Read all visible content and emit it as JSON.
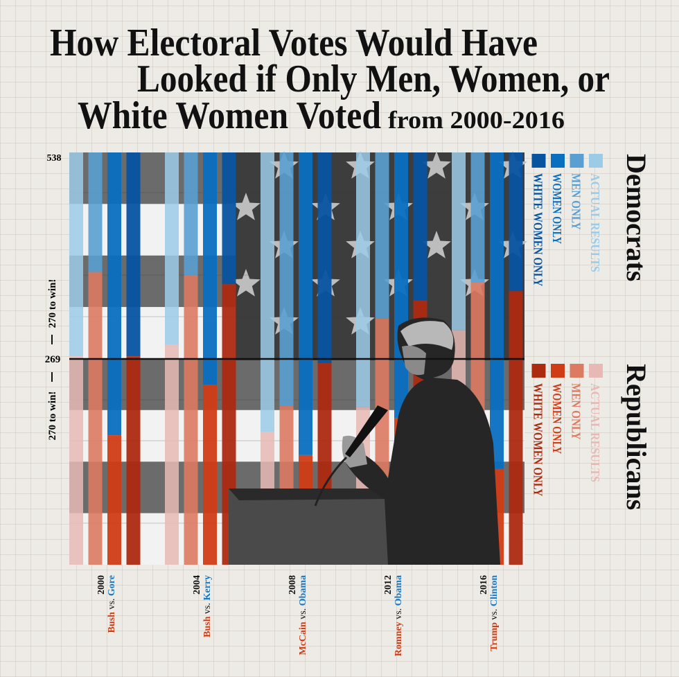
{
  "title": {
    "line1": "How Electoral Votes Would Have",
    "line2": "Looked if Only Men, Women, or",
    "line3": "White Women Voted",
    "line3_suffix": "from 2000-2016"
  },
  "chart_data": {
    "type": "bar",
    "stacked": true,
    "title": "How Electoral Votes Would Have Looked if Only Men, Women, or White Women Voted from 2000-2016",
    "ylim": [
      0,
      538
    ],
    "y_ticks": [
      "538",
      "269"
    ],
    "y_annotation": "270 to win!",
    "reference_line": 269,
    "categories": [
      "2000",
      "2004",
      "2008",
      "2012",
      "2016"
    ],
    "matchups": [
      {
        "year": "2000",
        "rep": "Bush",
        "vs": " vs. ",
        "dem": "Gore"
      },
      {
        "year": "2004",
        "rep": "Bush",
        "vs": " vs. ",
        "dem": "Kerry"
      },
      {
        "year": "2008",
        "rep": "McCain",
        "vs": " vs. ",
        "dem": "Obama"
      },
      {
        "year": "2012",
        "rep": "Romney",
        "vs": " vs. ",
        "dem": "Obama"
      },
      {
        "year": "2016",
        "rep": "Trump",
        "vs": " vs. ",
        "dem": "Clinton"
      }
    ],
    "series": [
      {
        "name": "ACTUAL RESULTS",
        "dem_values": [
          266,
          251,
          365,
          332,
          232
        ],
        "rep_values": [
          271,
          286,
          173,
          206,
          306
        ]
      },
      {
        "name": "MEN ONLY",
        "dem_values": [
          156,
          160,
          331,
          217,
          170
        ],
        "rep_values": [
          382,
          378,
          207,
          321,
          368
        ]
      },
      {
        "name": "WOMEN ONLY",
        "dem_values": [
          369,
          303,
          395,
          347,
          413
        ],
        "rep_values": [
          169,
          235,
          143,
          191,
          125
        ]
      },
      {
        "name": "WHITE WOMEN ONLY",
        "dem_values": [
          266,
          172,
          275,
          193,
          181
        ],
        "rep_values": [
          272,
          366,
          263,
          345,
          357
        ]
      }
    ],
    "legend": {
      "democrats": {
        "title": "Democrats",
        "items": [
          "ACTUAL RESULTS",
          "MEN ONLY",
          "WOMEN ONLY",
          "WHITE WOMEN ONLY"
        ],
        "colors": [
          "#9ccbe8",
          "#5a9fd2",
          "#0b6fc0",
          "#0753a0"
        ]
      },
      "republicans": {
        "title": "Republicans",
        "items": [
          "ACTUAL RESULTS",
          "MEN ONLY",
          "WOMEN ONLY",
          "WHITE WOMEN ONLY"
        ],
        "colors": [
          "#e8b9b4",
          "#dc7a62",
          "#d03c15",
          "#ac2a10"
        ]
      },
      "placement": "right"
    },
    "grid": true
  },
  "colors": {
    "rep_text": "#d03c15",
    "dem_text": "#1a78c2",
    "text": "#111111"
  }
}
